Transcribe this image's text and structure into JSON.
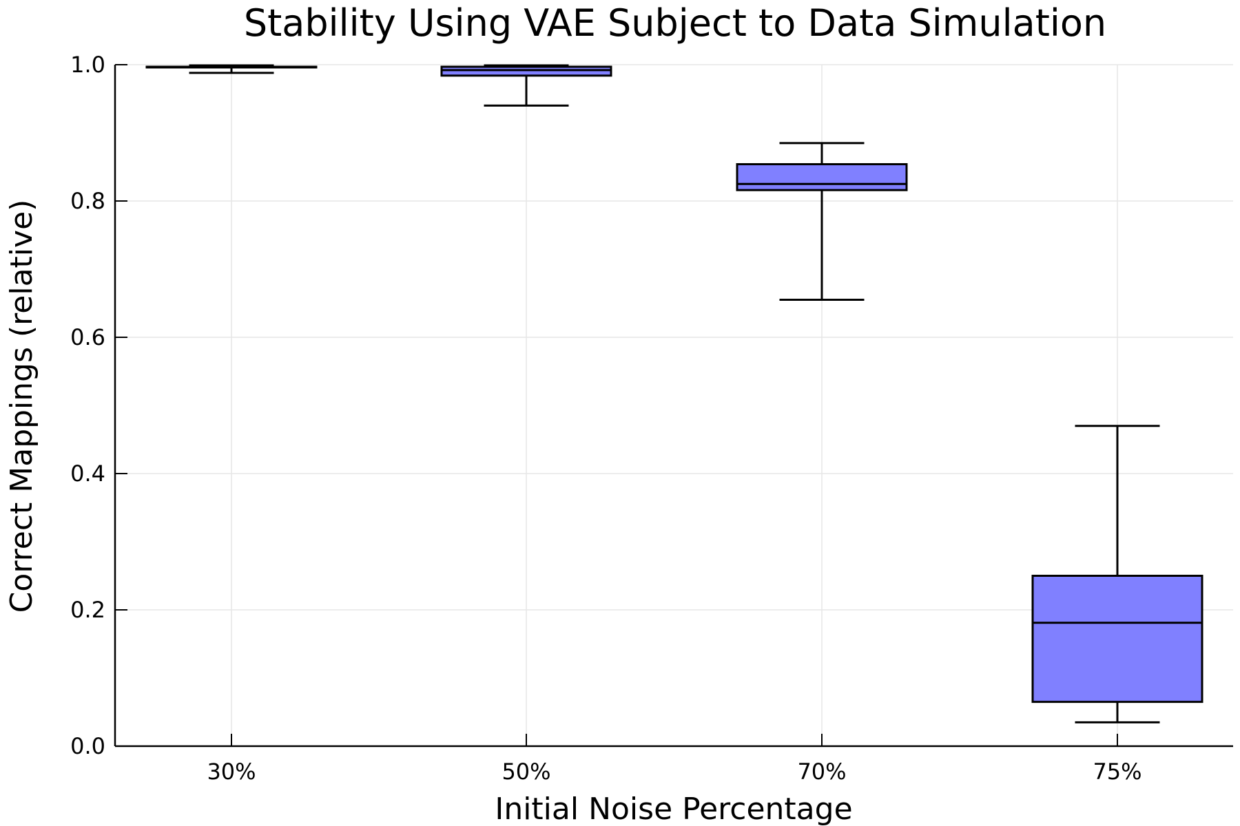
{
  "chart_data": {
    "type": "box",
    "title": "Stability Using VAE Subject to Data Simulation",
    "xlabel": "Initial Noise Percentage",
    "ylabel": "Correct Mappings (relative)",
    "categories": [
      "30%",
      "50%",
      "70%",
      "75%"
    ],
    "ylim": [
      0.0,
      1.0
    ],
    "yticks": [
      "0.0",
      "0.2",
      "0.4",
      "0.6",
      "0.8",
      "1.0"
    ],
    "ytick_values": [
      0.0,
      0.2,
      0.4,
      0.6,
      0.8,
      1.0
    ],
    "grid": true,
    "box_color": "#8080ff",
    "series": [
      {
        "boxes": [
          {
            "category": "30%",
            "min": 0.988,
            "q1": 0.996,
            "median": 0.997,
            "q3": 0.997,
            "max": 0.999
          },
          {
            "category": "50%",
            "min": 0.94,
            "q1": 0.984,
            "median": 0.992,
            "q3": 0.997,
            "max": 0.999
          },
          {
            "category": "70%",
            "min": 0.655,
            "q1": 0.816,
            "median": 0.825,
            "q3": 0.854,
            "max": 0.885
          },
          {
            "category": "75%",
            "min": 0.035,
            "q1": 0.065,
            "median": 0.181,
            "q3": 0.25,
            "max": 0.47
          }
        ]
      }
    ]
  }
}
